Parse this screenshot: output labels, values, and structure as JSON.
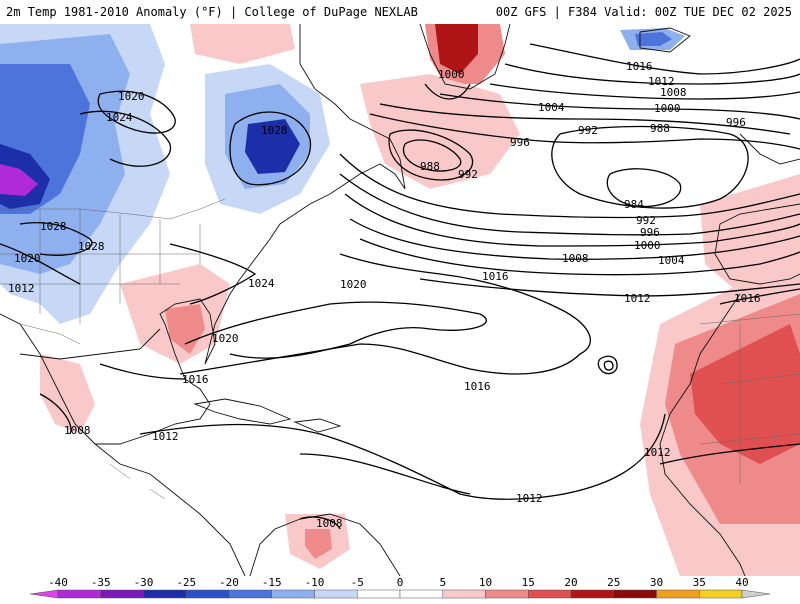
{
  "header": {
    "title_left": "2m Temp 1981-2010 Anomaly (°F) | College of DuPage NEXLAB",
    "title_right": "00Z GFS | F384 Valid: 00Z TUE DEC 02 2025"
  },
  "colors": {
    "warm_light": "#f9c8c8",
    "warm_mid": "#ef8a8a",
    "warm_strong": "#e05050",
    "warm_deep": "#b01515",
    "cool_light": "#c7d8f7",
    "cool_mid": "#8fb0ee",
    "cool_strong": "#4d74db",
    "cool_deep": "#1c2fa8",
    "extreme_cold": "#b02ad8"
  },
  "isobar_labels": [
    {
      "id": "l1020a",
      "text": "1020"
    },
    {
      "id": "l1024a",
      "text": "1024"
    },
    {
      "id": "l1028a",
      "text": "1028"
    },
    {
      "id": "l1028b",
      "text": "1028"
    },
    {
      "id": "l1028c",
      "text": "1028"
    },
    {
      "id": "l1020b",
      "text": "1020"
    },
    {
      "id": "l1012a",
      "text": "1012"
    },
    {
      "id": "l1024b",
      "text": "1024"
    },
    {
      "id": "l1020c",
      "text": "1020"
    },
    {
      "id": "l1020d",
      "text": "1020"
    },
    {
      "id": "l1016a",
      "text": "1016"
    },
    {
      "id": "l1016b",
      "text": "1016"
    },
    {
      "id": "l1008a",
      "text": "1008"
    },
    {
      "id": "l1012b",
      "text": "1012"
    },
    {
      "id": "l1008b",
      "text": "1008"
    },
    {
      "id": "l1012c",
      "text": "1012"
    },
    {
      "id": "l1016c",
      "text": "1016"
    },
    {
      "id": "l1012d",
      "text": "1012"
    },
    {
      "id": "l1000a",
      "text": "1000"
    },
    {
      "id": "l1016d",
      "text": "1016"
    },
    {
      "id": "l1012e",
      "text": "1012"
    },
    {
      "id": "l1008c",
      "text": "1008"
    },
    {
      "id": "l1004a",
      "text": "1004"
    },
    {
      "id": "l1000b",
      "text": "1000"
    },
    {
      "id": "l996a",
      "text": "996"
    },
    {
      "id": "l996b",
      "text": "996"
    },
    {
      "id": "l992a",
      "text": "992"
    },
    {
      "id": "l988a",
      "text": "988"
    },
    {
      "id": "l988b",
      "text": "988"
    },
    {
      "id": "l992b",
      "text": "992"
    },
    {
      "id": "l984a",
      "text": "984"
    },
    {
      "id": "l992c",
      "text": "992"
    },
    {
      "id": "l996c",
      "text": "996"
    },
    {
      "id": "l1000c",
      "text": "1000"
    },
    {
      "id": "l1004b",
      "text": "1004"
    },
    {
      "id": "l1008d",
      "text": "1008"
    },
    {
      "id": "l1012f",
      "text": "1012"
    },
    {
      "id": "l1016e",
      "text": "1016"
    }
  ],
  "colorbar": {
    "ticks": [
      "-40",
      "-35",
      "-30",
      "-25",
      "-20",
      "-15",
      "-10",
      "-5",
      "0",
      "5",
      "10",
      "15",
      "20",
      "25",
      "30",
      "35",
      "40"
    ],
    "colors": [
      "#e040e8",
      "#b02ad8",
      "#7a18b8",
      "#1c2fa8",
      "#2a50c8",
      "#4d74db",
      "#8fb0ee",
      "#c7d8f7",
      "#ffffff",
      "#ffffff",
      "#f9c8c8",
      "#ef8a8a",
      "#e05050",
      "#b01515",
      "#8a0a0a",
      "#f0a020",
      "#f5d020",
      "#cfcfcf"
    ]
  }
}
